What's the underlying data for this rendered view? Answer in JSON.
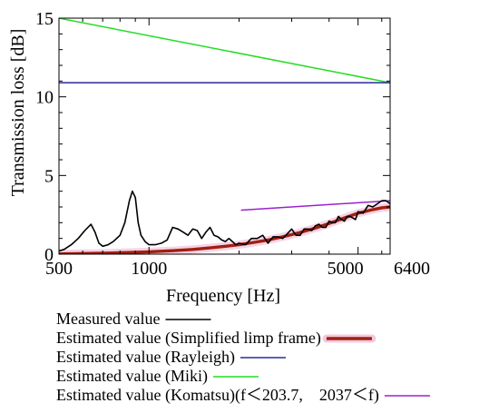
{
  "chart_data": {
    "type": "line",
    "title": "",
    "xlabel": "Frequency [Hz]",
    "ylabel": "Transmission loss [dB]",
    "xscale": "log",
    "xlim": [
      500,
      6400
    ],
    "ylim": [
      0,
      15
    ],
    "x_ticks": [
      {
        "value": 500,
        "label": "500"
      },
      {
        "value": 1000,
        "label": "1000"
      },
      {
        "value": 5000,
        "label": "5000"
      },
      {
        "value": 6400,
        "label": "6400"
      }
    ],
    "y_ticks": [
      {
        "value": 0,
        "label": "0"
      },
      {
        "value": 5,
        "label": "5"
      },
      {
        "value": 10,
        "label": "10"
      },
      {
        "value": 15,
        "label": "15"
      }
    ],
    "grid": false,
    "legend_position": "bottom",
    "series": [
      {
        "name": "Measured value",
        "color": "#000000",
        "x": [
          500,
          520,
          550,
          580,
          610,
          640,
          660,
          680,
          700,
          730,
          760,
          800,
          830,
          860,
          880,
          900,
          920,
          940,
          970,
          1000,
          1050,
          1100,
          1150,
          1200,
          1250,
          1300,
          1350,
          1400,
          1450,
          1500,
          1550,
          1600,
          1650,
          1700,
          1750,
          1800,
          1850,
          1900,
          1950,
          2000,
          2100,
          2200,
          2300,
          2400,
          2500,
          2600,
          2700,
          2800,
          2900,
          3000,
          3100,
          3200,
          3300,
          3400,
          3500,
          3600,
          3700,
          3800,
          3900,
          4000,
          4100,
          4200,
          4300,
          4400,
          4500,
          4600,
          4700,
          4800,
          4900,
          5000,
          5200,
          5400,
          5600,
          5800,
          6000,
          6200,
          6400
        ],
        "y": [
          0.2,
          0.3,
          0.6,
          1.0,
          1.5,
          1.9,
          1.4,
          0.7,
          0.5,
          0.6,
          0.8,
          1.2,
          2.0,
          3.4,
          4.0,
          3.6,
          2.0,
          1.2,
          0.8,
          0.6,
          0.6,
          0.7,
          0.9,
          1.7,
          1.6,
          1.4,
          1.2,
          1.6,
          1.5,
          1.0,
          1.4,
          1.7,
          1.2,
          1.1,
          0.9,
          0.8,
          1.0,
          0.8,
          0.6,
          0.7,
          0.6,
          1.0,
          1.0,
          1.2,
          0.7,
          1.1,
          1.1,
          1.0,
          1.3,
          1.6,
          1.2,
          1.2,
          1.6,
          1.6,
          1.5,
          1.8,
          1.9,
          1.7,
          1.7,
          2.1,
          2.0,
          2.0,
          2.4,
          2.2,
          2.1,
          2.4,
          2.4,
          2.3,
          2.2,
          2.7,
          2.6,
          3.1,
          3.0,
          3.2,
          3.4,
          3.4,
          3.2
        ]
      },
      {
        "name": "Estimated value (Simplified limp frame)",
        "color": "#a02010",
        "x": [
          500,
          600,
          700,
          800,
          900,
          1000,
          1200,
          1400,
          1600,
          1800,
          2000,
          2200,
          2500,
          2800,
          3200,
          3600,
          4000,
          4500,
          5000,
          5500,
          6000,
          6400
        ],
        "y": [
          0.02,
          0.04,
          0.06,
          0.09,
          0.12,
          0.15,
          0.22,
          0.3,
          0.4,
          0.5,
          0.6,
          0.72,
          0.9,
          1.1,
          1.38,
          1.66,
          1.95,
          2.3,
          2.6,
          2.8,
          2.95,
          3.0
        ]
      },
      {
        "name": "Estimated value (Rayleigh)",
        "color": "#2a2a9a",
        "x": [
          500,
          6400
        ],
        "y": [
          10.9,
          10.9
        ]
      },
      {
        "name": "Estimated value (Miki)",
        "color": "#22dd22",
        "x": [
          500,
          6400
        ],
        "y": [
          15.0,
          10.9
        ]
      },
      {
        "name": "Estimated value (Komatsu)(f＜203.7,　2037＜f)",
        "color": "#9a22cc",
        "x": [
          2037,
          6400
        ],
        "y": [
          2.8,
          3.4
        ]
      }
    ]
  }
}
